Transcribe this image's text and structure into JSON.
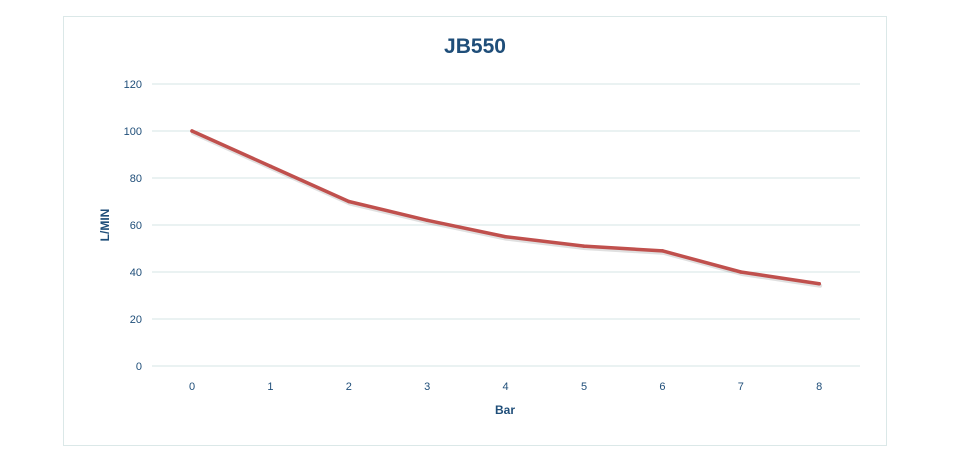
{
  "chart_data": {
    "type": "line",
    "title": "JB550",
    "xlabel": "Bar",
    "ylabel": "L/MIN",
    "x": [
      0,
      1,
      2,
      3,
      4,
      5,
      6,
      7,
      8
    ],
    "x_tick_labels": [
      "0",
      "1",
      "2",
      "3",
      "4",
      "5",
      "6",
      "7",
      "8"
    ],
    "y_ticks": [
      0,
      20,
      40,
      60,
      80,
      100,
      120
    ],
    "y_tick_labels": [
      "0",
      "20",
      "40",
      "60",
      "80",
      "100",
      "120"
    ],
    "ylim": [
      0,
      120
    ],
    "grid": true,
    "legend": "none",
    "series": [
      {
        "values": [
          100,
          85,
          70,
          62,
          55,
          51,
          49,
          40,
          35
        ],
        "color": "#c0504d"
      }
    ],
    "colors": {
      "text": "#1f4e79",
      "grid": "#d6e6e6",
      "frame": "#dbe8e8"
    }
  }
}
